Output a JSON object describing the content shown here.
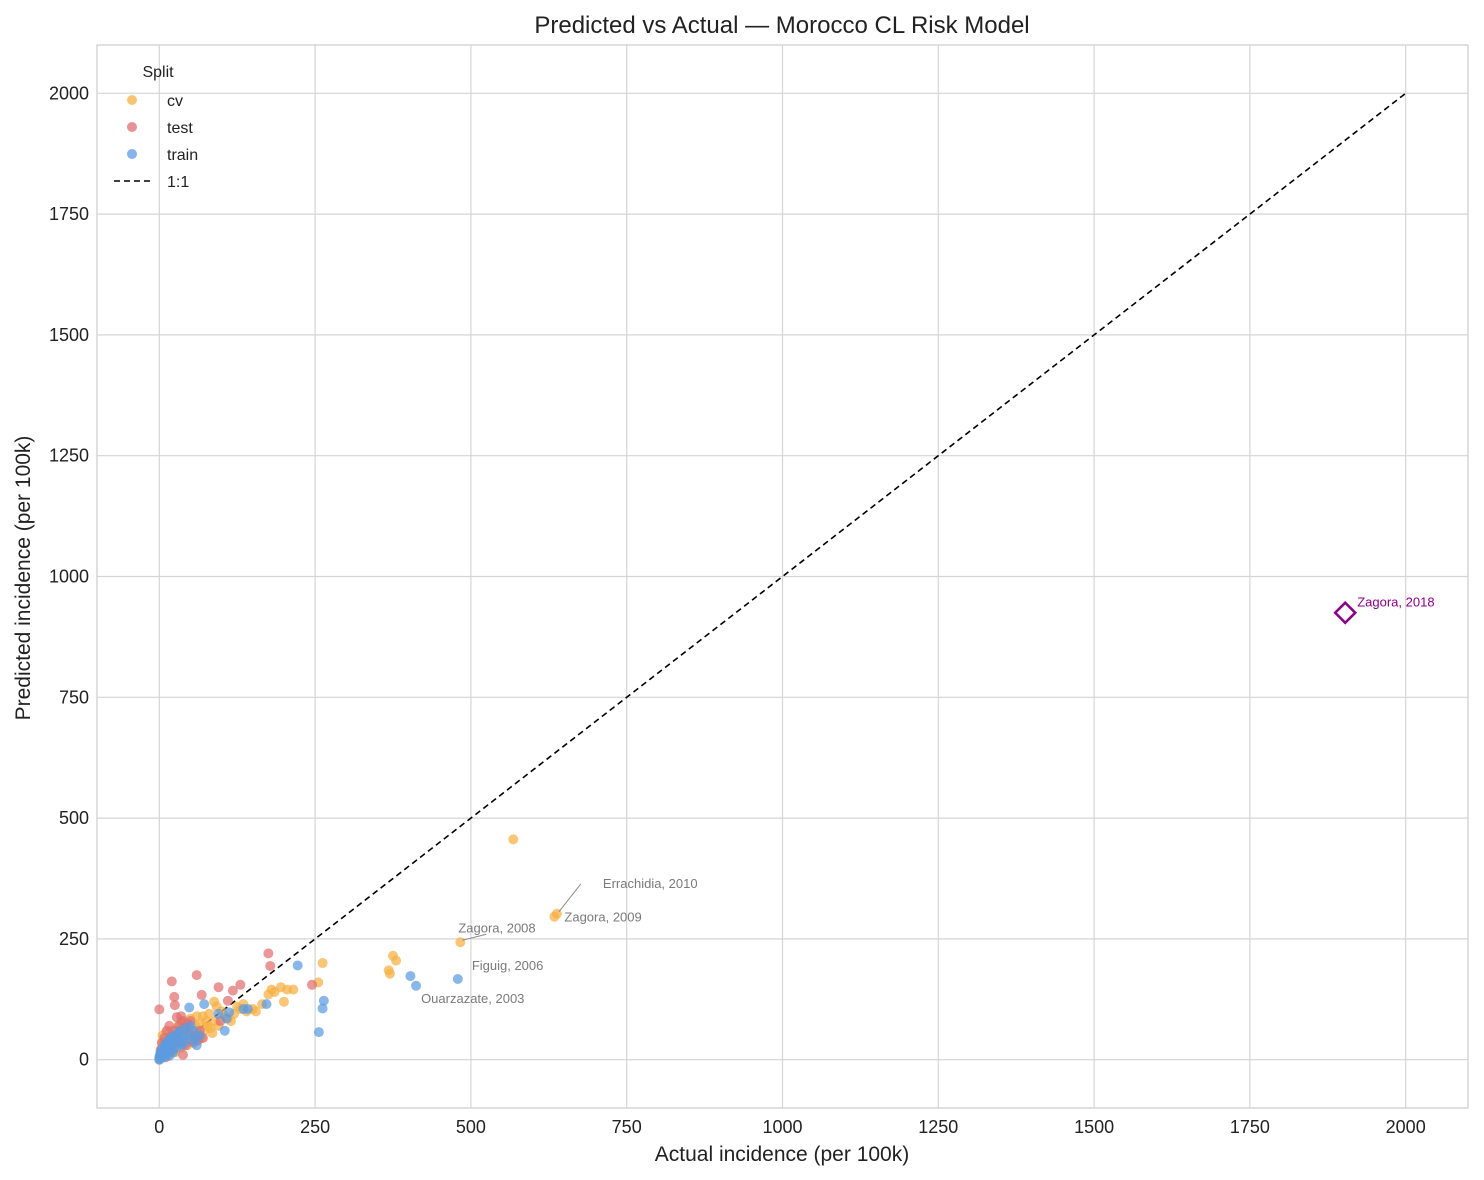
{
  "chart_data": {
    "type": "scatter",
    "title": "Predicted vs Actual — Morocco CL Risk Model",
    "xlabel": "Actual incidence (per 100k)",
    "ylabel": "Predicted incidence (per 100k)",
    "xlim": [
      -100,
      2100
    ],
    "ylim": [
      -100,
      2100
    ],
    "xticks": [
      "0",
      "250",
      "500",
      "750",
      "1000",
      "1250",
      "1500",
      "1750",
      "2000"
    ],
    "yticks": [
      "0",
      "250",
      "500",
      "750",
      "1000",
      "1250",
      "1500",
      "1750",
      "2000"
    ],
    "grid": true,
    "legend": {
      "title": "Split",
      "position": "top-left",
      "line_label": "1:1"
    },
    "reference_line": {
      "label": "1:1",
      "from": [
        0,
        0
      ],
      "to": [
        2000,
        2000
      ],
      "style": "dashed",
      "color": "#000000"
    },
    "series": [
      {
        "name": "cv",
        "color": "#f6b044",
        "points": [
          [
            0,
            0
          ],
          [
            1,
            3
          ],
          [
            2,
            8
          ],
          [
            3,
            15
          ],
          [
            4,
            25
          ],
          [
            5,
            35
          ],
          [
            5,
            50
          ],
          [
            6,
            12
          ],
          [
            8,
            40
          ],
          [
            10,
            55
          ],
          [
            10,
            20
          ],
          [
            12,
            30
          ],
          [
            14,
            10
          ],
          [
            15,
            45
          ],
          [
            18,
            25
          ],
          [
            20,
            60
          ],
          [
            22,
            35
          ],
          [
            25,
            15
          ],
          [
            28,
            50
          ],
          [
            30,
            70
          ],
          [
            32,
            40
          ],
          [
            35,
            25
          ],
          [
            38,
            60
          ],
          [
            40,
            80
          ],
          [
            42,
            45
          ],
          [
            45,
            30
          ],
          [
            48,
            65
          ],
          [
            50,
            85
          ],
          [
            52,
            50
          ],
          [
            55,
            40
          ],
          [
            58,
            70
          ],
          [
            60,
            90
          ],
          [
            62,
            55
          ],
          [
            65,
            75
          ],
          [
            68,
            45
          ],
          [
            70,
            90
          ],
          [
            72,
            60
          ],
          [
            75,
            80
          ],
          [
            78,
            70
          ],
          [
            80,
            95
          ],
          [
            82,
            65
          ],
          [
            85,
            55
          ],
          [
            88,
            120
          ],
          [
            90,
            80
          ],
          [
            92,
            110
          ],
          [
            95,
            70
          ],
          [
            100,
            100
          ],
          [
            105,
            90
          ],
          [
            110,
            85
          ],
          [
            115,
            80
          ],
          [
            120,
            95
          ],
          [
            125,
            110
          ],
          [
            130,
            105
          ],
          [
            135,
            115
          ],
          [
            140,
            100
          ],
          [
            150,
            105
          ],
          [
            155,
            100
          ],
          [
            165,
            115
          ],
          [
            175,
            135
          ],
          [
            180,
            145
          ],
          [
            185,
            140
          ],
          [
            195,
            150
          ],
          [
            200,
            120
          ],
          [
            205,
            145
          ],
          [
            215,
            145
          ],
          [
            255,
            160
          ],
          [
            262,
            200
          ],
          [
            368,
            185
          ],
          [
            370,
            178
          ],
          [
            375,
            215
          ],
          [
            380,
            205
          ],
          [
            483,
            243
          ],
          [
            568,
            456
          ],
          [
            634,
            296
          ],
          [
            638,
            302
          ]
        ]
      },
      {
        "name": "test",
        "color": "#e06f6f",
        "points": [
          [
            0,
            104
          ],
          [
            2,
            20
          ],
          [
            4,
            35
          ],
          [
            6,
            10
          ],
          [
            8,
            45
          ],
          [
            10,
            5
          ],
          [
            12,
            60
          ],
          [
            14,
            30
          ],
          [
            16,
            70
          ],
          [
            18,
            40
          ],
          [
            20,
            50
          ],
          [
            20,
            162
          ],
          [
            22,
            20
          ],
          [
            24,
            130
          ],
          [
            25,
            113
          ],
          [
            26,
            60
          ],
          [
            28,
            88
          ],
          [
            30,
            45
          ],
          [
            32,
            70
          ],
          [
            34,
            35
          ],
          [
            35,
            90
          ],
          [
            36,
            80
          ],
          [
            38,
            10
          ],
          [
            40,
            65
          ],
          [
            42,
            30
          ],
          [
            45,
            75
          ],
          [
            48,
            55
          ],
          [
            50,
            80
          ],
          [
            55,
            35
          ],
          [
            58,
            50
          ],
          [
            60,
            175
          ],
          [
            62,
            40
          ],
          [
            65,
            60
          ],
          [
            68,
            134
          ],
          [
            70,
            45
          ],
          [
            95,
            150
          ],
          [
            98,
            80
          ],
          [
            110,
            122
          ],
          [
            118,
            143
          ],
          [
            130,
            155
          ],
          [
            175,
            220
          ],
          [
            178,
            194
          ],
          [
            245,
            155
          ]
        ]
      },
      {
        "name": "train",
        "color": "#5b9be0",
        "points": [
          [
            0,
            0
          ],
          [
            0,
            5
          ],
          [
            1,
            2
          ],
          [
            1,
            10
          ],
          [
            2,
            15
          ],
          [
            3,
            8
          ],
          [
            4,
            20
          ],
          [
            5,
            12
          ],
          [
            6,
            25
          ],
          [
            7,
            5
          ],
          [
            8,
            18
          ],
          [
            9,
            30
          ],
          [
            10,
            10
          ],
          [
            11,
            22
          ],
          [
            12,
            35
          ],
          [
            13,
            15
          ],
          [
            14,
            28
          ],
          [
            15,
            40
          ],
          [
            16,
            8
          ],
          [
            17,
            20
          ],
          [
            18,
            45
          ],
          [
            20,
            30
          ],
          [
            22,
            15
          ],
          [
            24,
            50
          ],
          [
            26,
            38
          ],
          [
            28,
            25
          ],
          [
            30,
            55
          ],
          [
            32,
            42
          ],
          [
            34,
            60
          ],
          [
            36,
            30
          ],
          [
            38,
            48
          ],
          [
            40,
            35
          ],
          [
            42,
            65
          ],
          [
            45,
            50
          ],
          [
            48,
            108
          ],
          [
            50,
            70
          ],
          [
            52,
            40
          ],
          [
            55,
            60
          ],
          [
            58,
            45
          ],
          [
            60,
            30
          ],
          [
            65,
            50
          ],
          [
            72,
            115
          ],
          [
            95,
            95
          ],
          [
            105,
            60
          ],
          [
            108,
            85
          ],
          [
            112,
            98
          ],
          [
            135,
            105
          ],
          [
            142,
            105
          ],
          [
            172,
            115
          ],
          [
            222,
            195
          ],
          [
            256,
            57
          ],
          [
            262,
            106
          ],
          [
            264,
            122
          ],
          [
            403,
            173
          ],
          [
            412,
            153
          ],
          [
            479,
            167
          ]
        ]
      }
    ],
    "highlight": {
      "label": "Zagora, 2018",
      "x": 1903,
      "y": 925,
      "marker": "diamond",
      "color": "#8b008b"
    },
    "annotations": [
      {
        "text": "Errachidia, 2010",
        "x": 638,
        "y": 302,
        "leader": true
      },
      {
        "text": "Zagora, 2009",
        "x": 634,
        "y": 296,
        "leader": false
      },
      {
        "text": "Zagora, 2008",
        "x": 483,
        "y": 243,
        "leader": true
      },
      {
        "text": "Figuig, 2006",
        "x": 479,
        "y": 167,
        "leader": false
      },
      {
        "text": "Ouarzazate, 2003",
        "x": 412,
        "y": 153,
        "leader": false
      }
    ]
  }
}
